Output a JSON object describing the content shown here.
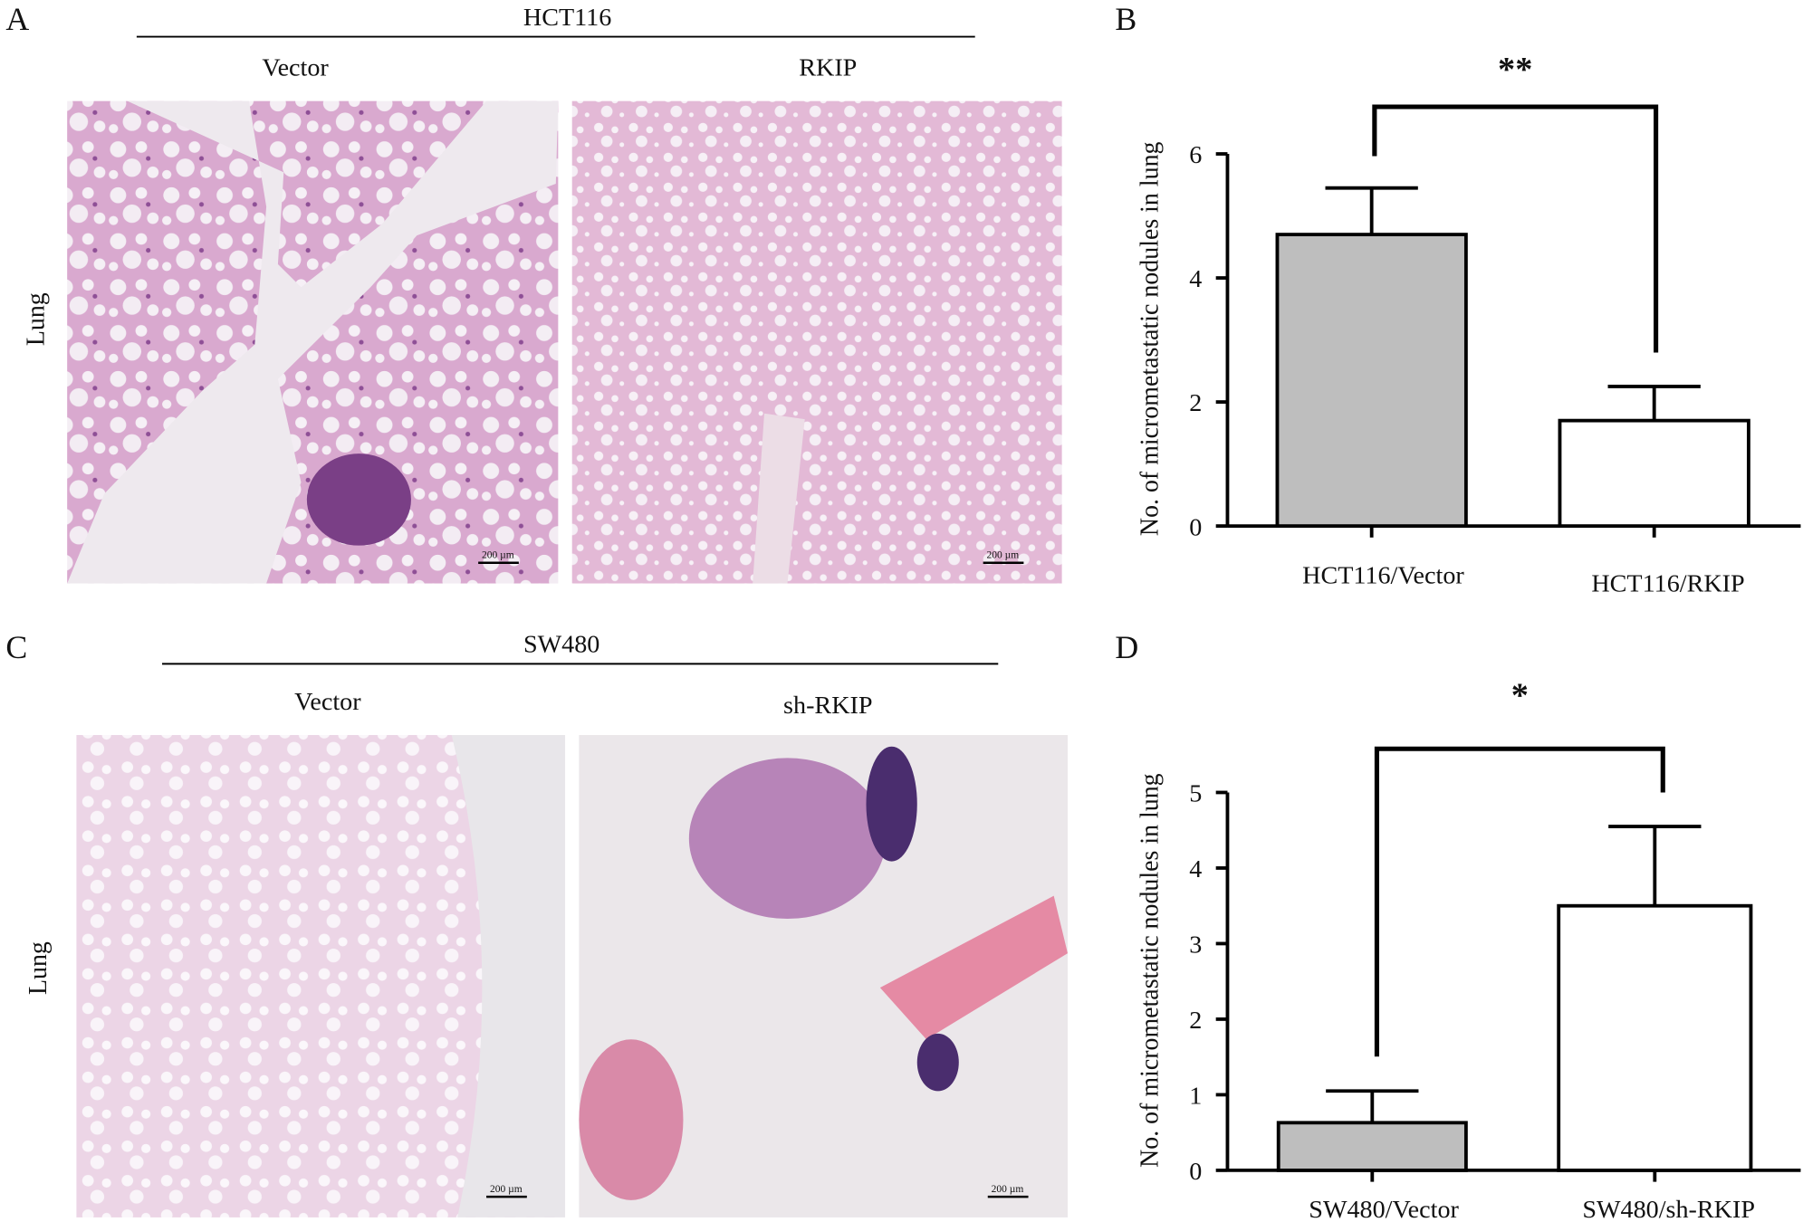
{
  "panel_a": {
    "letter": "A",
    "cell_line": "HCT116",
    "columns": [
      "Vector",
      "RKIP"
    ],
    "row_label": "Lung",
    "scale_bars": [
      "200 µm",
      "200 µm"
    ]
  },
  "panel_c": {
    "letter": "C",
    "cell_line": "SW480",
    "columns": [
      "Vector",
      "sh-RKIP"
    ],
    "row_label": "Lung",
    "scale_bars": [
      "200 µm",
      "200 µm"
    ]
  },
  "chart_data": [
    {
      "type": "bar",
      "letter": "B",
      "ylabel": "No. of micrometastatic nodules in lung",
      "categories": [
        "HCT116/Vector",
        "HCT116/RKIP"
      ],
      "values": [
        4.7,
        1.7
      ],
      "errors": [
        0.75,
        0.55
      ],
      "colors": [
        "#bebebe",
        "#ffffff"
      ],
      "ylim": [
        0,
        6
      ],
      "yticks": [
        0,
        2,
        4,
        6
      ],
      "significance": "**"
    },
    {
      "type": "bar",
      "letter": "D",
      "ylabel": "No. of micrometastatic nodules in lung",
      "categories": [
        "SW480/Vector",
        "SW480/sh-RKIP"
      ],
      "values": [
        0.63,
        3.5
      ],
      "errors": [
        0.42,
        1.05
      ],
      "colors": [
        "#bebebe",
        "#ffffff"
      ],
      "ylim": [
        0,
        5
      ],
      "yticks": [
        0,
        1,
        2,
        3,
        4,
        5
      ],
      "significance": "*"
    }
  ]
}
